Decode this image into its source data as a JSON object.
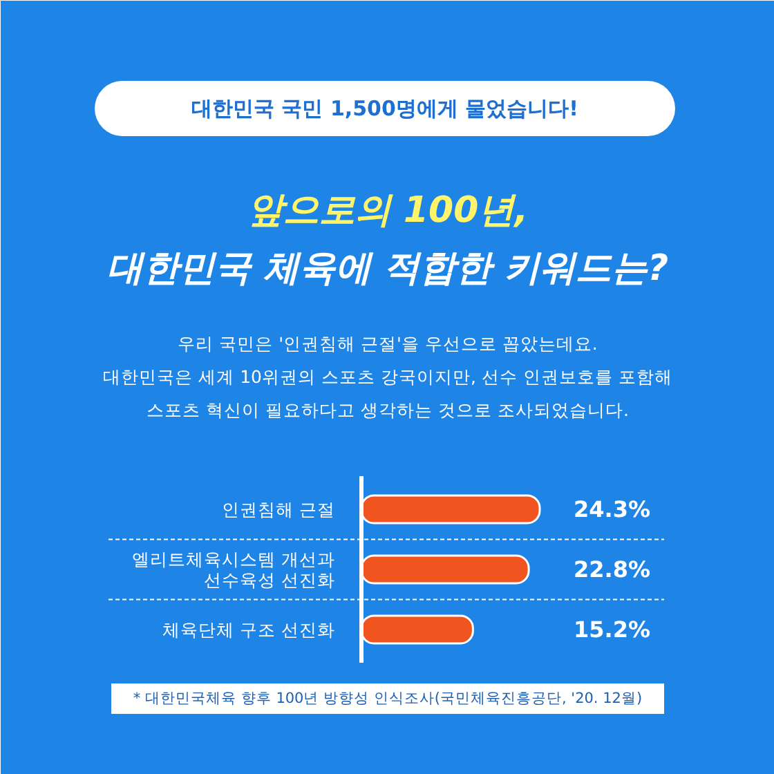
{
  "chart_data": {
    "type": "bar",
    "orientation": "horizontal",
    "title": "앞으로의 100년,\n대한민국 체육에 적합한 키워드는?",
    "categories": [
      "인권침해 근절",
      "엘리트체육시스템 개선과\n선수육성 선진화",
      "체육단체 구조 선진화"
    ],
    "values": [
      24.3,
      22.8,
      15.2
    ],
    "value_labels": [
      "24.3%",
      "22.8%",
      "15.2%"
    ],
    "color": "#f0541f",
    "annotations": [
      "대한민국 국민 1,500명에게 물었습니다!",
      "우리 국민은 '인권침해 근절'을 우선으로 꼽았는데요.\n대한민국은 세계 10위권의 스포츠 강국이지만, 선수 인권보호를 포함해\n스포츠 혁신이 필요하다고 생각하는 것으로 조사되었습니다.",
      "* 대한민국체육 향후 100년 방향성 인식조사(국민체육진흥공단, '20. 12월)"
    ]
  }
}
